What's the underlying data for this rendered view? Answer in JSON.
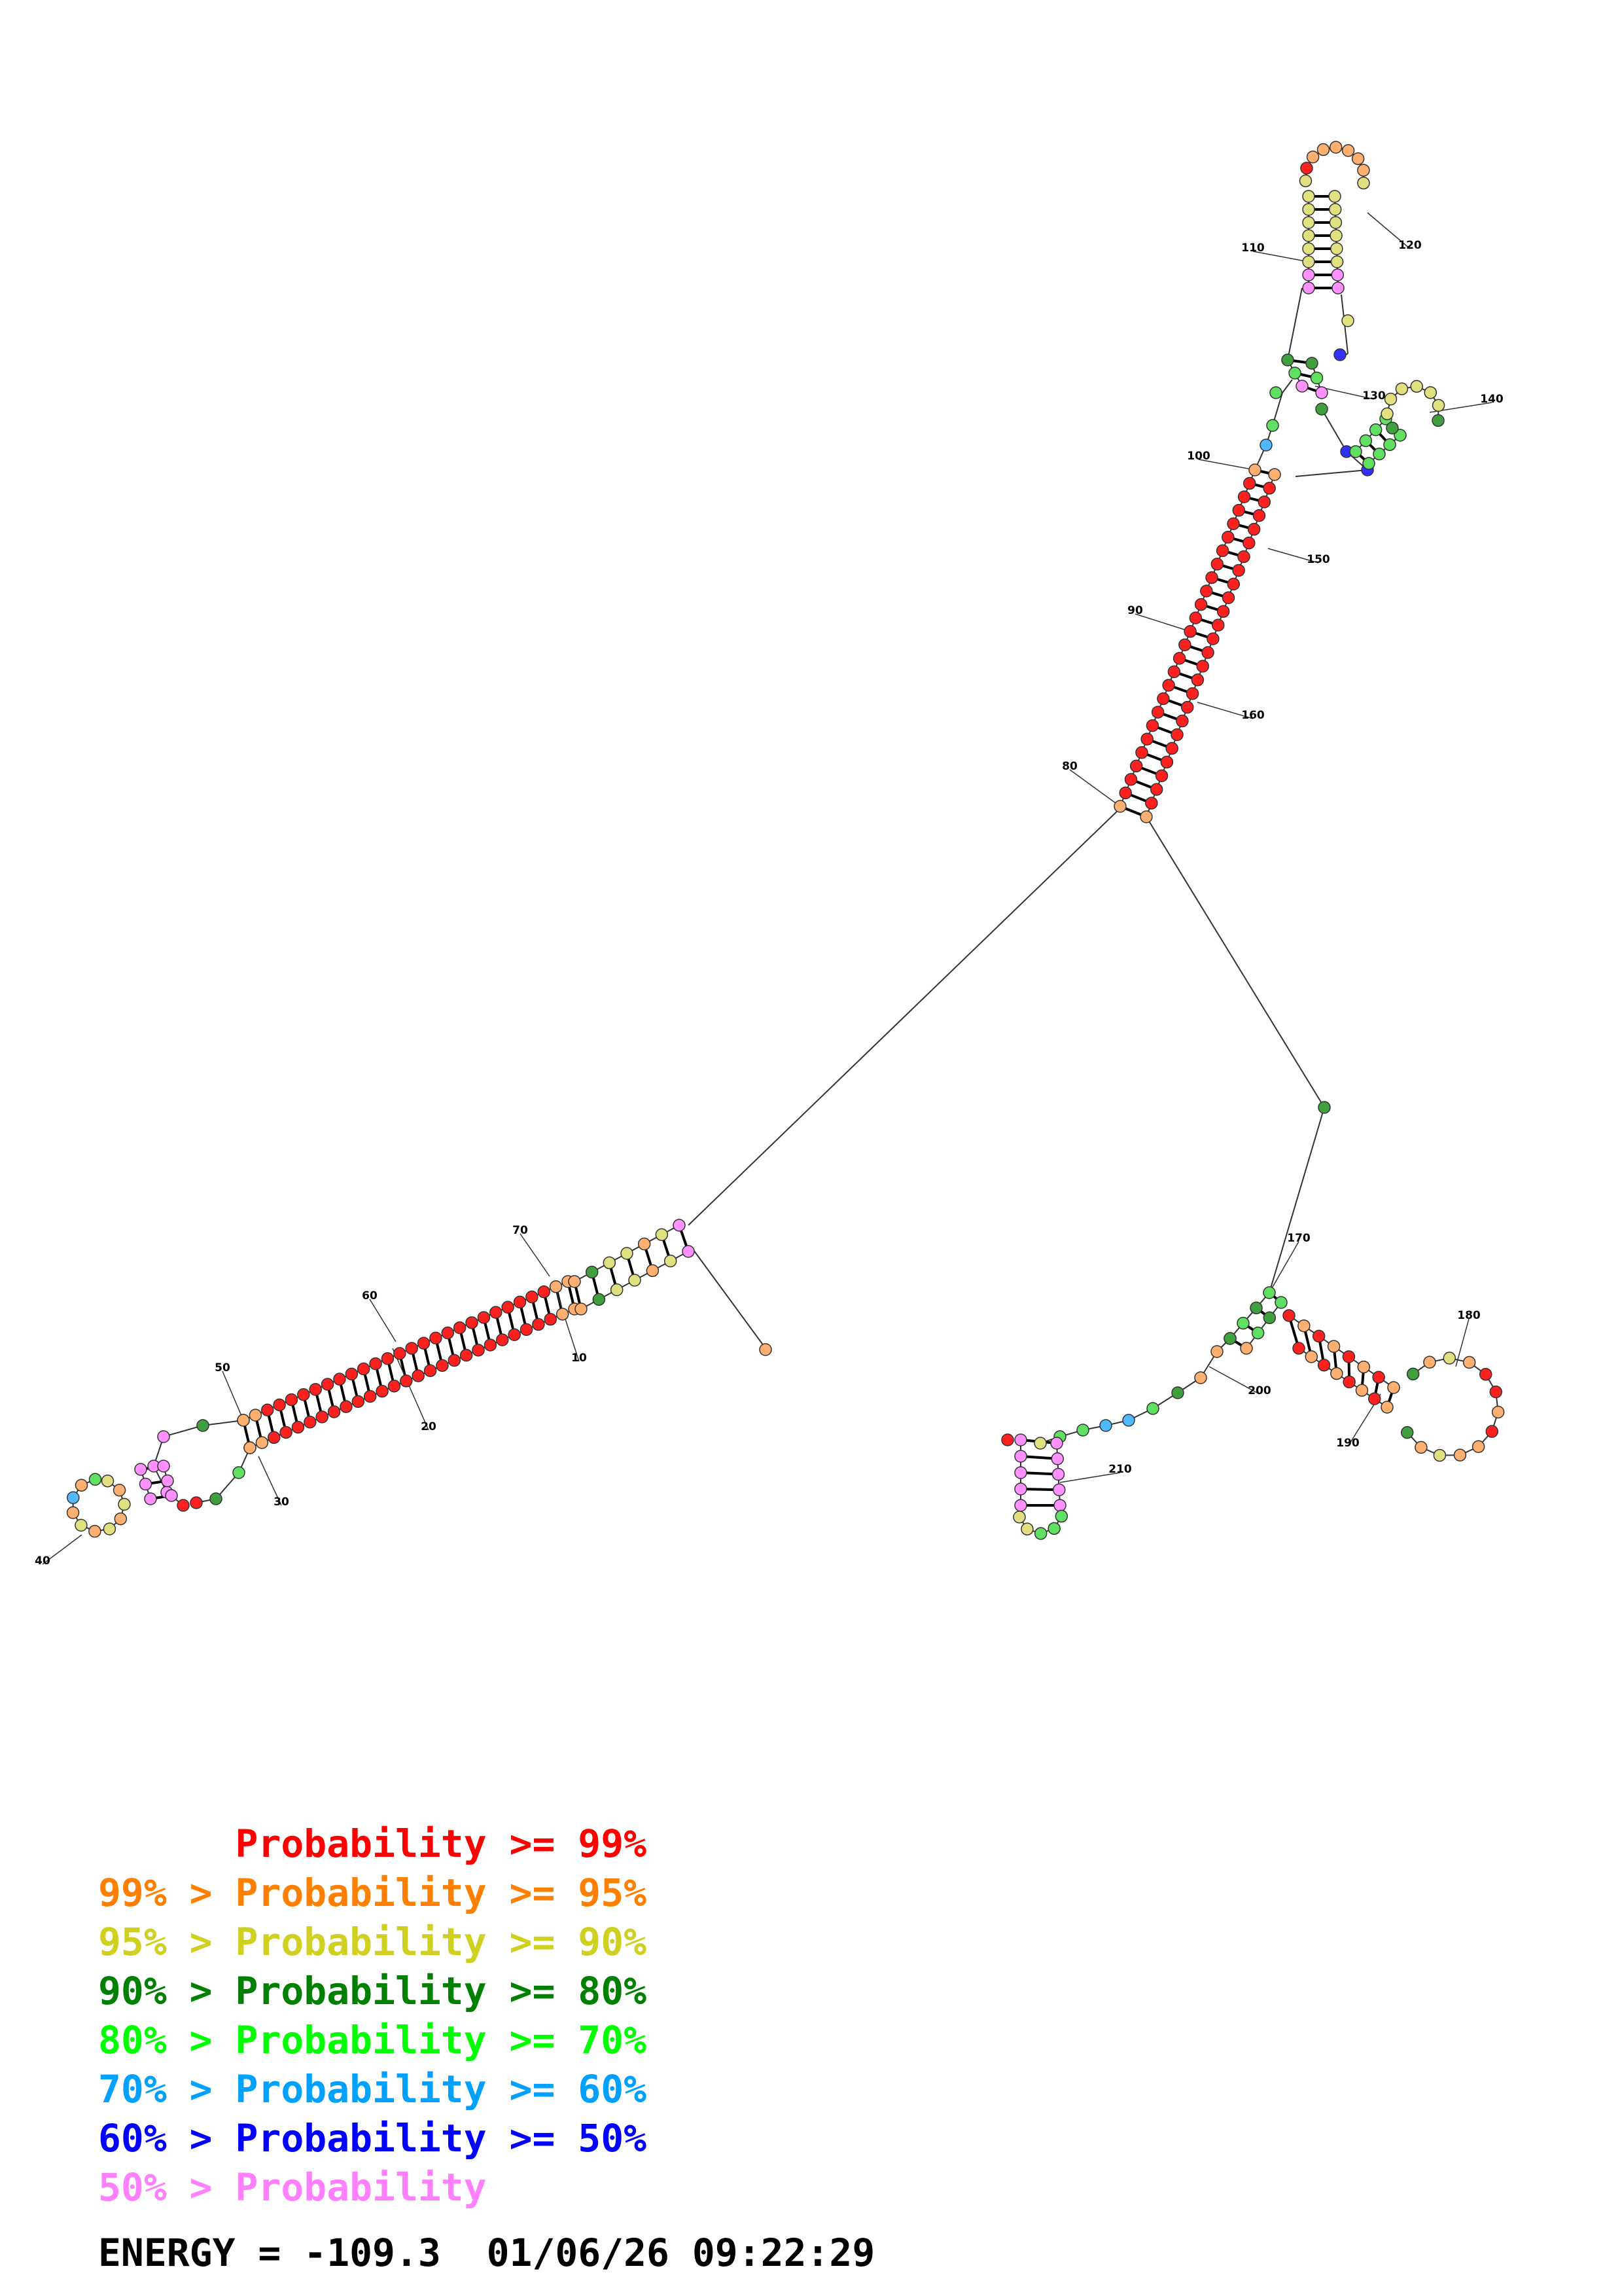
{
  "legend": [
    {
      "prefix": "",
      "label": "Probability >= 99%",
      "color": "#ff0000"
    },
    {
      "prefix": "99% > ",
      "label": "Probability >= 95%",
      "color": "#ff8000"
    },
    {
      "prefix": "95% > ",
      "label": "Probability >= 90%",
      "color": "#d0d020"
    },
    {
      "prefix": "90% > ",
      "label": "Probability >= 80%",
      "color": "#008000"
    },
    {
      "prefix": "80% > ",
      "label": "Probability >= 70%",
      "color": "#00ff00"
    },
    {
      "prefix": "70% > ",
      "label": "Probability >= 60%",
      "color": "#00a0ff"
    },
    {
      "prefix": "60% > ",
      "label": "Probability >= 50%",
      "color": "#0000ff"
    },
    {
      "prefix": "50% > ",
      "label": "Probability",
      "color": "#ff80ff"
    }
  ],
  "energy_line": "ENERGY = -109.3  01/06/26 09:22:29",
  "index_labels": [
    "10",
    "20",
    "30",
    "40",
    "50",
    "60",
    "70",
    "80",
    "90",
    "100",
    "110",
    "120",
    "130",
    "140",
    "150",
    "160",
    "170",
    "180",
    "190",
    "200",
    "210"
  ]
}
